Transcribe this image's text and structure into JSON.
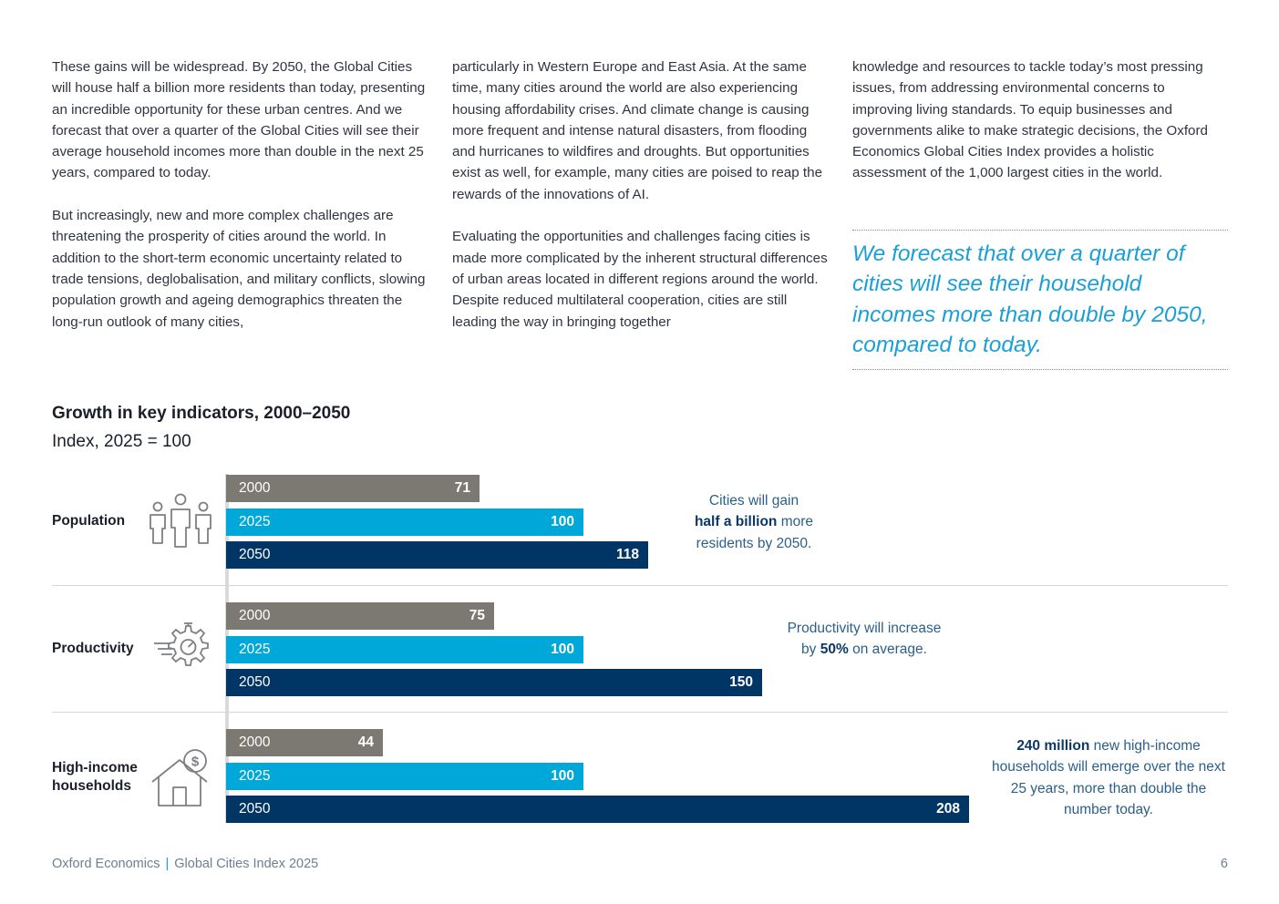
{
  "columns": [
    {
      "paragraphs": [
        "These gains will be widespread. By 2050, the Global Cities will house half a billion more residents than today, presenting an incredible opportunity for these urban centres. And we forecast that over a quarter of the Global Cities will see their average household incomes more than double in the next 25 years, compared to today.",
        "But increasingly, new and more complex challenges are threatening the prosperity of cities around the world. In addition to the short-term economic uncertainty related to trade tensions, deglobalisation, and military conflicts, slowing population growth and ageing demographics threaten the long-run outlook of many cities,"
      ]
    },
    {
      "paragraphs": [
        "particularly in Western Europe and East Asia. At the same time, many cities around the world are also experiencing housing affordability crises. And climate change is causing more frequent and intense natural disasters, from flooding and hurricanes to wildfires and droughts. But opportunities exist as well, for example, many cities are poised to reap the rewards of the innovations of AI.",
        "Evaluating the opportunities and challenges facing cities is made more complicated by the inherent structural differences of urban areas located in different regions around the world. Despite reduced multilateral cooperation, cities are still leading the way in bringing together"
      ]
    },
    {
      "paragraphs": [
        "knowledge and resources to tackle today’s most pressing issues, from addressing environmental concerns to improving living standards. To equip businesses and governments alike to make strategic decisions, the Oxford Economics Global Cities Index provides a holistic assessment of the 1,000 largest cities in the world."
      ]
    }
  ],
  "pullquote": "We forecast that over a quarter of cities will see their household incomes more than double by 2050, compared to today.",
  "chart_data": {
    "type": "bar",
    "orientation": "horizontal",
    "title": "Growth in key indicators, 2000–2050",
    "subtitle": "Index, 2025 = 100",
    "categories": [
      "2000",
      "2025",
      "2050"
    ],
    "groups": [
      {
        "label": "Population",
        "icon": "people-icon",
        "values": [
          71,
          100,
          118
        ],
        "note": {
          "pre": "Cities will gain",
          "bold": "half a billion",
          "post": "more residents by 2050."
        }
      },
      {
        "label": "Productivity",
        "icon": "gear-speed-icon",
        "values": [
          75,
          100,
          150
        ],
        "note": {
          "pre": "Productivity will increase by",
          "bold": "50%",
          "post": "on average."
        }
      },
      {
        "label": "High-income households",
        "icon": "house-dollar-icon",
        "values": [
          44,
          100,
          208
        ],
        "note": {
          "pre": "",
          "bold": "240 million",
          "post": "new high-income households will emerge over the next 25 years, more than double the number today."
        }
      }
    ],
    "colors": {
      "2000": "#7c7872",
      "2025": "#00a8d9",
      "2050": "#003566"
    }
  },
  "footer": {
    "publisher": "Oxford Economics",
    "separator": "|",
    "report": "Global Cities Index 2025",
    "page": "6"
  }
}
